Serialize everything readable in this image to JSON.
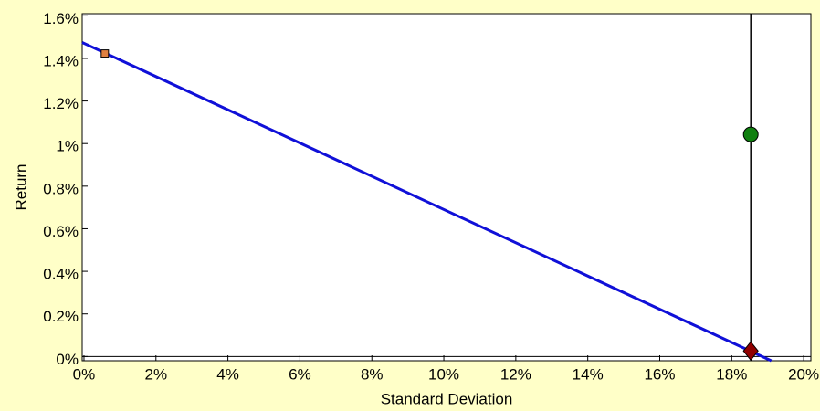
{
  "chart_data": {
    "type": "scatter",
    "xlabel": "Standard Deviation",
    "ylabel": "Return",
    "xlim": [
      -0.05,
      20.2
    ],
    "ylim": [
      -0.02,
      1.61
    ],
    "xticks": [
      {
        "value": 0,
        "label": "0%"
      },
      {
        "value": 2,
        "label": "2%"
      },
      {
        "value": 4,
        "label": "4%"
      },
      {
        "value": 6,
        "label": "6%"
      },
      {
        "value": 8,
        "label": "8%"
      },
      {
        "value": 10,
        "label": "10%"
      },
      {
        "value": 12,
        "label": "12%"
      },
      {
        "value": 14,
        "label": "14%"
      },
      {
        "value": 16,
        "label": "16%"
      },
      {
        "value": 18,
        "label": "18%"
      },
      {
        "value": 20,
        "label": "20%"
      }
    ],
    "yticks": [
      {
        "value": 0,
        "label": "0%"
      },
      {
        "value": 0.2,
        "label": "0.2%"
      },
      {
        "value": 0.4,
        "label": "0.4%"
      },
      {
        "value": 0.6,
        "label": "0.6%"
      },
      {
        "value": 0.8,
        "label": "0.8%"
      },
      {
        "value": 1,
        "label": "1%"
      },
      {
        "value": 1.2,
        "label": "1.2%"
      },
      {
        "value": 1.4,
        "label": "1.4%"
      },
      {
        "value": 1.6,
        "label": "1.6%"
      }
    ],
    "line": {
      "color": "#1010d8",
      "x": [
        -0.05,
        19.1
      ],
      "y": [
        1.475,
        -0.02
      ]
    },
    "vline": {
      "color": "#000000",
      "x": 18.53
    },
    "points": [
      {
        "marker": "square",
        "color": "#e08040",
        "x": 0.58,
        "y": 1.423
      },
      {
        "marker": "circle",
        "color": "#108010",
        "x": 18.53,
        "y": 1.043
      },
      {
        "marker": "diamond",
        "color": "#900000",
        "x": 18.53,
        "y": 0.026
      }
    ]
  }
}
